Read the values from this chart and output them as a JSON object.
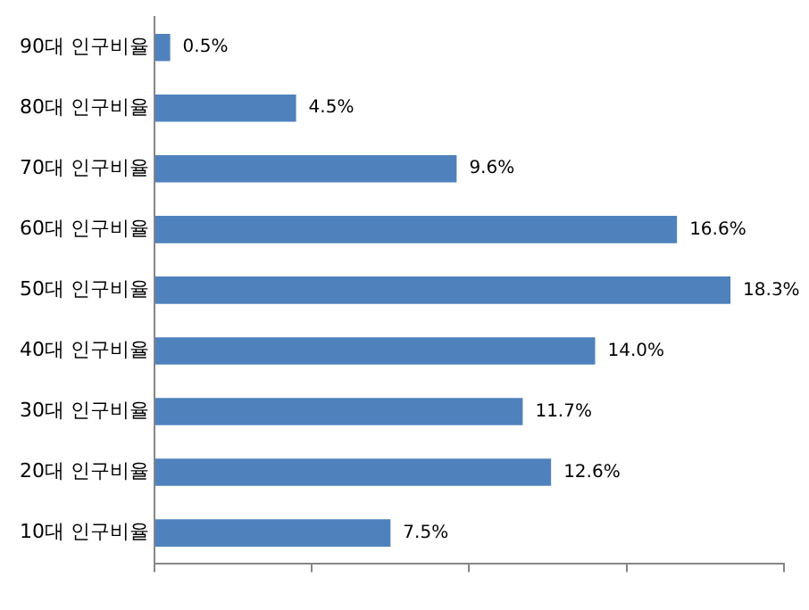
{
  "chart_data": {
    "type": "bar",
    "orientation": "horizontal",
    "categories": [
      "90대 인구비율",
      "80대 인구비율",
      "70대 인구비율",
      "60대 인구비율",
      "50대 인구비율",
      "40대 인구비율",
      "30대 인구비율",
      "20대 인구비율",
      "10대 인구비율"
    ],
    "values": [
      0.5,
      4.5,
      9.6,
      16.6,
      18.3,
      14.0,
      11.7,
      12.6,
      7.5
    ],
    "value_labels": [
      "0.5%",
      "4.5%",
      "9.6%",
      "16.6%",
      "18.3%",
      "14.0%",
      "11.7%",
      "12.6%",
      "7.5%"
    ],
    "color": "#4f81bd",
    "xlim": [
      0,
      20
    ],
    "xticks": [
      {
        "value": 0,
        "label": null
      },
      {
        "value": 5,
        "label": null
      },
      {
        "value": 10,
        "label": null
      },
      {
        "value": 15,
        "label": null
      },
      {
        "value": 20,
        "label": null
      }
    ],
    "grid": false,
    "legend": false
  }
}
